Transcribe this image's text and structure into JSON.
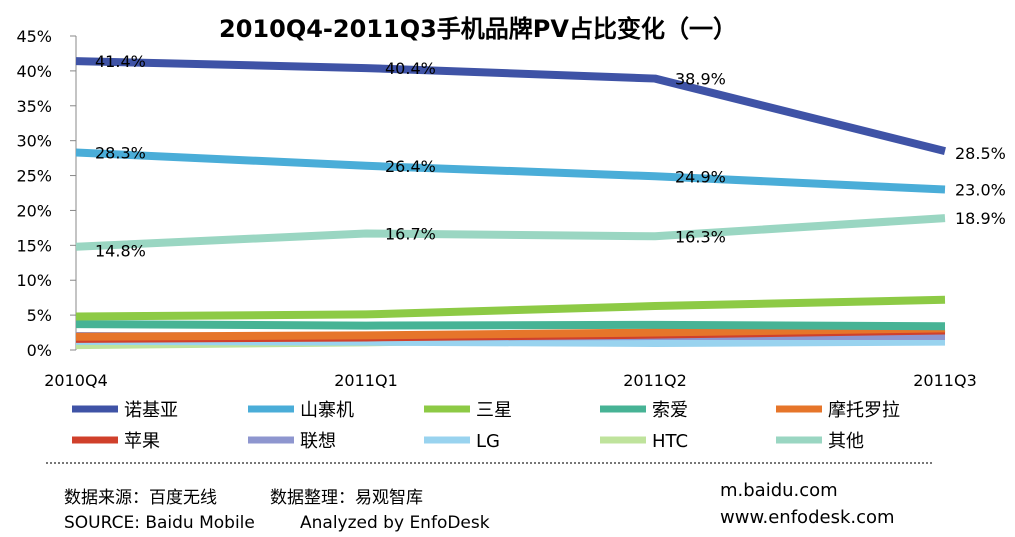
{
  "chart_data": {
    "type": "line",
    "title": "2010Q4-2011Q3手机品牌PV占比变化（一）",
    "categories": [
      "2010Q4",
      "2011Q1",
      "2011Q2",
      "2011Q3"
    ],
    "ylim": [
      0,
      45
    ],
    "yticks": [
      "0%",
      "5%",
      "10%",
      "15%",
      "20%",
      "25%",
      "30%",
      "35%",
      "40%",
      "45%"
    ],
    "grid": false,
    "legend_position": "bottom",
    "series": [
      {
        "name": "诺基亚",
        "color": "#3f53a6",
        "values": [
          41.4,
          40.4,
          38.9,
          28.5
        ],
        "labels": [
          "41.4%",
          "40.4%",
          "38.9%",
          "28.5%"
        ]
      },
      {
        "name": "山寨机",
        "color": "#4aadd8",
        "values": [
          28.3,
          26.4,
          24.9,
          23.0
        ],
        "labels": [
          "28.3%",
          "26.4%",
          "24.9%",
          "23.0%"
        ]
      },
      {
        "name": "三星",
        "color": "#8dca45",
        "values": [
          4.8,
          5.1,
          6.3,
          7.2
        ],
        "labels": []
      },
      {
        "name": "索爱",
        "color": "#47b395",
        "values": [
          3.7,
          3.5,
          3.6,
          3.4
        ],
        "labels": []
      },
      {
        "name": "摩托罗拉",
        "color": "#e6752a",
        "values": [
          1.9,
          2.1,
          2.5,
          3.1
        ],
        "labels": []
      },
      {
        "name": "苹果",
        "color": "#d0402b",
        "values": [
          1.6,
          1.8,
          2.2,
          2.8
        ],
        "labels": []
      },
      {
        "name": "联想",
        "color": "#8e96cf",
        "values": [
          2.0,
          1.9,
          2.0,
          2.0
        ],
        "labels": []
      },
      {
        "name": "LG",
        "color": "#99d3ef",
        "values": [
          1.3,
          1.2,
          1.0,
          1.2
        ],
        "labels": []
      },
      {
        "name": "HTC",
        "color": "#bfe39c",
        "values": [
          0.7,
          1.1,
          1.7,
          3.1
        ],
        "labels": []
      },
      {
        "name": "其他",
        "color": "#9ad6c2",
        "values": [
          14.8,
          16.7,
          16.3,
          18.9
        ],
        "labels": [
          "14.8%",
          "16.7%",
          "16.3%",
          "18.9%"
        ]
      }
    ]
  },
  "footer": {
    "source_cn": "数据来源：百度无线",
    "analyst_cn": "数据整理：易观智库",
    "source_en": "SOURCE: Baidu Mobile",
    "analyst_en": "Analyzed by EnfoDesk",
    "site1": "m.baidu.com",
    "site2": "www.enfodesk.com"
  }
}
